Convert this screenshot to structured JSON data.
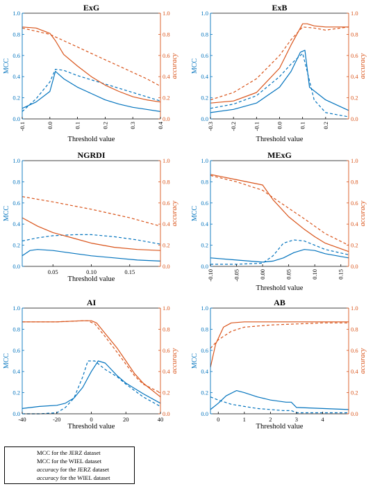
{
  "colors": {
    "mcc": "#0072BD",
    "accuracy": "#D95319"
  },
  "legend": {
    "items": [
      {
        "prefix": "MCC",
        "suffix": " for the JERZ dataset",
        "color": "#0072BD",
        "dashed": false
      },
      {
        "prefix": "MCC",
        "suffix": " for the WIEL dataset",
        "color": "#0072BD",
        "dashed": true
      },
      {
        "prefix": "accuracy",
        "suffix": " for the JERZ dataset",
        "color": "#D95319",
        "dashed": false
      },
      {
        "prefix": "accuracy",
        "suffix": " for the WIEL dataset",
        "color": "#D95319",
        "dashed": true
      }
    ]
  },
  "chart_data": [
    {
      "type": "line",
      "title": "ExG",
      "xlabel": "",
      "ylabel": "MCC",
      "y2label": "accuracy",
      "xlim": [
        -0.1,
        0.4
      ],
      "ylim": [
        0,
        1
      ],
      "xticks": [
        -0.1,
        0.0,
        0.1,
        0.2,
        0.3,
        0.4
      ],
      "xticklabels": [
        "-0.1",
        "0.0",
        "0.1",
        "0.2",
        "0.3",
        "0.4"
      ],
      "yticks": [
        0,
        0.2,
        0.4,
        0.6,
        0.8,
        1.0
      ],
      "yticklabels": [
        "0.0",
        "0.2",
        "0.4",
        "0.6",
        "0.8",
        "1.0"
      ],
      "series": [
        {
          "name": "MCC for the JERZ dataset",
          "color": "#0072BD",
          "dashed": false,
          "x": [
            -0.1,
            -0.05,
            0.0,
            0.02,
            0.05,
            0.1,
            0.15,
            0.2,
            0.25,
            0.3,
            0.35,
            0.4
          ],
          "y": [
            0.1,
            0.16,
            0.26,
            0.45,
            0.38,
            0.3,
            0.24,
            0.18,
            0.14,
            0.11,
            0.09,
            0.07
          ]
        },
        {
          "name": "MCC for the WIEL dataset",
          "color": "#0072BD",
          "dashed": true,
          "x": [
            -0.1,
            -0.05,
            0.0,
            0.02,
            0.05,
            0.1,
            0.15,
            0.2,
            0.25,
            0.3,
            0.35,
            0.4
          ],
          "y": [
            0.07,
            0.19,
            0.35,
            0.47,
            0.46,
            0.41,
            0.37,
            0.33,
            0.29,
            0.25,
            0.21,
            0.17
          ]
        },
        {
          "name": "accuracy for the JERZ dataset",
          "color": "#D95319",
          "dashed": false,
          "x": [
            -0.1,
            -0.05,
            0.0,
            0.02,
            0.05,
            0.1,
            0.15,
            0.2,
            0.25,
            0.3,
            0.35,
            0.4
          ],
          "y": [
            0.87,
            0.86,
            0.81,
            0.74,
            0.61,
            0.5,
            0.4,
            0.32,
            0.26,
            0.21,
            0.18,
            0.16
          ]
        },
        {
          "name": "accuracy for the WIEL dataset",
          "color": "#D95319",
          "dashed": true,
          "x": [
            -0.1,
            0.0,
            0.05,
            0.1,
            0.15,
            0.2,
            0.25,
            0.3,
            0.35,
            0.4
          ],
          "y": [
            0.86,
            0.8,
            0.74,
            0.68,
            0.62,
            0.56,
            0.5,
            0.44,
            0.38,
            0.31
          ]
        }
      ]
    },
    {
      "type": "line",
      "title": "ExB",
      "xlabel": "",
      "ylabel": "MCC",
      "y2label": "accuracy",
      "xlim": [
        -0.3,
        0.3
      ],
      "ylim": [
        0,
        1
      ],
      "xticks": [
        -0.3,
        -0.2,
        -0.1,
        0.0,
        0.1,
        0.2
      ],
      "xticklabels": [
        "-0.3",
        "-0.2",
        "-0.1",
        "0.0",
        "0.1",
        "0.2"
      ],
      "yticks": [
        0,
        0.2,
        0.4,
        0.6,
        0.8,
        1.0
      ],
      "yticklabels": [
        "0.0",
        "0.2",
        "0.4",
        "0.6",
        "0.8",
        "1.0"
      ],
      "series": [
        {
          "name": "MCC for the JERZ dataset",
          "color": "#0072BD",
          "dashed": false,
          "x": [
            -0.3,
            -0.2,
            -0.1,
            0.0,
            0.05,
            0.09,
            0.11,
            0.13,
            0.2,
            0.3
          ],
          "y": [
            0.06,
            0.09,
            0.15,
            0.3,
            0.45,
            0.63,
            0.65,
            0.3,
            0.18,
            0.08
          ]
        },
        {
          "name": "MCC for the WIEL dataset",
          "color": "#0072BD",
          "dashed": true,
          "x": [
            -0.3,
            -0.2,
            -0.1,
            0.0,
            0.05,
            0.1,
            0.12,
            0.15,
            0.2,
            0.3
          ],
          "y": [
            0.1,
            0.14,
            0.22,
            0.4,
            0.52,
            0.62,
            0.45,
            0.18,
            0.06,
            0.02
          ]
        },
        {
          "name": "accuracy for the JERZ dataset",
          "color": "#D95319",
          "dashed": false,
          "x": [
            -0.3,
            -0.2,
            -0.1,
            0.0,
            0.05,
            0.1,
            0.12,
            0.15,
            0.2,
            0.3
          ],
          "y": [
            0.15,
            0.17,
            0.25,
            0.48,
            0.7,
            0.9,
            0.9,
            0.88,
            0.87,
            0.87
          ]
        },
        {
          "name": "accuracy for the WIEL dataset",
          "color": "#D95319",
          "dashed": true,
          "x": [
            -0.3,
            -0.2,
            -0.1,
            0.0,
            0.05,
            0.1,
            0.15,
            0.2,
            0.3
          ],
          "y": [
            0.18,
            0.25,
            0.38,
            0.6,
            0.75,
            0.87,
            0.86,
            0.84,
            0.87
          ]
        }
      ]
    },
    {
      "type": "line",
      "title": "NGRDI",
      "xlabel": "",
      "ylabel": "MCC",
      "y2label": "accuracy",
      "xlim": [
        0.01,
        0.19
      ],
      "ylim": [
        0,
        1
      ],
      "xticks": [
        0.05,
        0.1,
        0.15
      ],
      "xticklabels": [
        "0.05",
        "0.10",
        "0.15"
      ],
      "yticks": [
        0,
        0.2,
        0.4,
        0.6,
        0.8,
        1.0
      ],
      "yticklabels": [
        "0.0",
        "0.2",
        "0.4",
        "0.6",
        "0.8",
        "1.0"
      ],
      "series": [
        {
          "name": "MCC for the JERZ dataset",
          "color": "#0072BD",
          "dashed": false,
          "x": [
            0.01,
            0.02,
            0.03,
            0.05,
            0.08,
            0.1,
            0.13,
            0.16,
            0.19
          ],
          "y": [
            0.1,
            0.15,
            0.16,
            0.15,
            0.12,
            0.1,
            0.08,
            0.06,
            0.05
          ]
        },
        {
          "name": "MCC for the WIEL dataset",
          "color": "#0072BD",
          "dashed": true,
          "x": [
            0.01,
            0.03,
            0.05,
            0.08,
            0.1,
            0.13,
            0.16,
            0.19
          ],
          "y": [
            0.24,
            0.27,
            0.29,
            0.3,
            0.3,
            0.28,
            0.25,
            0.21
          ]
        },
        {
          "name": "accuracy for the JERZ dataset",
          "color": "#D95319",
          "dashed": false,
          "x": [
            0.01,
            0.03,
            0.05,
            0.08,
            0.1,
            0.13,
            0.16,
            0.19
          ],
          "y": [
            0.46,
            0.38,
            0.32,
            0.26,
            0.22,
            0.18,
            0.16,
            0.15
          ]
        },
        {
          "name": "accuracy for the WIEL dataset",
          "color": "#D95319",
          "dashed": true,
          "x": [
            0.01,
            0.05,
            0.1,
            0.15,
            0.19
          ],
          "y": [
            0.66,
            0.61,
            0.54,
            0.46,
            0.38
          ]
        }
      ]
    },
    {
      "type": "line",
      "title": "MExG",
      "xlabel": "",
      "ylabel": "MCC",
      "y2label": "accuracy",
      "xlim": [
        -0.1,
        0.165
      ],
      "ylim": [
        0,
        1
      ],
      "xticks": [
        -0.1,
        -0.05,
        0.0,
        0.05,
        0.1,
        0.15
      ],
      "xticklabels": [
        "-0.10",
        "-0.05",
        "0.00",
        "0.05",
        "0.10",
        "0.15"
      ],
      "yticks": [
        0,
        0.2,
        0.4,
        0.6,
        0.8,
        1.0
      ],
      "yticklabels": [
        "0.0",
        "0.2",
        "0.4",
        "0.6",
        "0.8",
        "1.0"
      ],
      "series": [
        {
          "name": "MCC for the JERZ dataset",
          "color": "#0072BD",
          "dashed": false,
          "x": [
            -0.1,
            -0.05,
            0.0,
            0.02,
            0.04,
            0.06,
            0.08,
            0.1,
            0.12,
            0.165
          ],
          "y": [
            0.08,
            0.06,
            0.04,
            0.05,
            0.08,
            0.13,
            0.16,
            0.15,
            0.12,
            0.08
          ]
        },
        {
          "name": "MCC for the WIEL dataset",
          "color": "#0072BD",
          "dashed": true,
          "x": [
            -0.1,
            -0.05,
            0.0,
            0.02,
            0.04,
            0.06,
            0.08,
            0.1,
            0.12,
            0.165
          ],
          "y": [
            0.02,
            0.02,
            0.03,
            0.1,
            0.22,
            0.25,
            0.24,
            0.2,
            0.16,
            0.11
          ]
        },
        {
          "name": "accuracy for the JERZ dataset",
          "color": "#D95319",
          "dashed": false,
          "x": [
            -0.1,
            -0.05,
            0.0,
            0.02,
            0.05,
            0.08,
            0.1,
            0.12,
            0.165
          ],
          "y": [
            0.87,
            0.82,
            0.77,
            0.63,
            0.47,
            0.35,
            0.28,
            0.22,
            0.14
          ]
        },
        {
          "name": "accuracy for the WIEL dataset",
          "color": "#D95319",
          "dashed": true,
          "x": [
            -0.1,
            -0.05,
            0.0,
            0.02,
            0.05,
            0.08,
            0.1,
            0.12,
            0.165
          ],
          "y": [
            0.86,
            0.8,
            0.72,
            0.65,
            0.55,
            0.45,
            0.38,
            0.31,
            0.2
          ]
        }
      ]
    },
    {
      "type": "line",
      "title": "AI",
      "xlabel": "",
      "ylabel": "MCC",
      "y2label": "accuracy",
      "xlim": [
        -40,
        40
      ],
      "ylim": [
        0,
        1
      ],
      "xticks": [
        -40,
        -20,
        0,
        20,
        40
      ],
      "xticklabels": [
        "-40",
        "-20",
        "0",
        "20",
        "40"
      ],
      "yticks": [
        0,
        0.2,
        0.4,
        0.6,
        0.8,
        1.0
      ],
      "yticklabels": [
        "0.0",
        "0.2",
        "0.4",
        "0.6",
        "0.8",
        "1.0"
      ],
      "series": [
        {
          "name": "MCC for the JERZ dataset",
          "color": "#0072BD",
          "dashed": false,
          "x": [
            -40,
            -30,
            -20,
            -15,
            -10,
            -5,
            0,
            4,
            8,
            15,
            20,
            30,
            40
          ],
          "y": [
            0.05,
            0.07,
            0.08,
            0.1,
            0.15,
            0.25,
            0.4,
            0.5,
            0.48,
            0.36,
            0.29,
            0.19,
            0.1
          ]
        },
        {
          "name": "MCC for the WIEL dataset",
          "color": "#0072BD",
          "dashed": true,
          "x": [
            -40,
            -30,
            -20,
            -15,
            -10,
            -5,
            -2,
            2,
            8,
            15,
            20,
            30,
            40
          ],
          "y": [
            0.0,
            0.0,
            0.01,
            0.06,
            0.15,
            0.35,
            0.5,
            0.5,
            0.42,
            0.35,
            0.28,
            0.16,
            0.07
          ]
        },
        {
          "name": "accuracy for the JERZ dataset",
          "color": "#D95319",
          "dashed": false,
          "x": [
            -40,
            -20,
            -5,
            0,
            3,
            8,
            15,
            20,
            25,
            30,
            40
          ],
          "y": [
            0.87,
            0.87,
            0.88,
            0.88,
            0.86,
            0.76,
            0.62,
            0.5,
            0.38,
            0.29,
            0.16
          ]
        },
        {
          "name": "accuracy for the WIEL dataset",
          "color": "#D95319",
          "dashed": true,
          "x": [
            -40,
            -20,
            -5,
            -2,
            2,
            8,
            15,
            20,
            25,
            30,
            40
          ],
          "y": [
            0.87,
            0.87,
            0.88,
            0.88,
            0.85,
            0.73,
            0.58,
            0.47,
            0.36,
            0.28,
            0.2
          ]
        }
      ]
    },
    {
      "type": "line",
      "title": "AB",
      "xlabel": "",
      "ylabel": "MCC",
      "y2label": "accuracy",
      "xlim": [
        -0.3,
        5
      ],
      "ylim": [
        0,
        1
      ],
      "xticks": [
        0,
        1,
        2,
        3,
        4
      ],
      "xticklabels": [
        "0",
        "1",
        "2",
        "3",
        "4"
      ],
      "yticks": [
        0,
        0.2,
        0.4,
        0.6,
        0.8,
        1.0
      ],
      "yticklabels": [
        "0.0",
        "0.2",
        "0.4",
        "0.6",
        "0.8",
        "1.0"
      ],
      "series": [
        {
          "name": "MCC for the JERZ dataset",
          "color": "#0072BD",
          "dashed": false,
          "x": [
            -0.3,
            0,
            0.3,
            0.7,
            1.0,
            1.5,
            2.0,
            2.6,
            2.8,
            3.0,
            4.0,
            5.0
          ],
          "y": [
            0.04,
            0.1,
            0.17,
            0.22,
            0.2,
            0.16,
            0.13,
            0.11,
            0.11,
            0.06,
            0.05,
            0.04
          ]
        },
        {
          "name": "MCC for the WIEL dataset",
          "color": "#0072BD",
          "dashed": true,
          "x": [
            -0.3,
            0,
            0.5,
            1.0,
            1.5,
            2.0,
            2.5,
            2.8,
            3.0,
            4.0,
            5.0
          ],
          "y": [
            0.16,
            0.13,
            0.09,
            0.07,
            0.05,
            0.04,
            0.03,
            0.03,
            0.01,
            0.01,
            0.01
          ]
        },
        {
          "name": "accuracy for the JERZ dataset",
          "color": "#D95319",
          "dashed": false,
          "x": [
            -0.3,
            -0.1,
            0.2,
            0.5,
            1.0,
            2.0,
            3.0,
            4.0,
            5.0
          ],
          "y": [
            0.44,
            0.66,
            0.82,
            0.86,
            0.87,
            0.87,
            0.87,
            0.87,
            0.87
          ]
        },
        {
          "name": "accuracy for the WIEL dataset",
          "color": "#D95319",
          "dashed": true,
          "x": [
            -0.3,
            0,
            0.5,
            1.0,
            2.0,
            3.0,
            4.0,
            5.0
          ],
          "y": [
            0.62,
            0.7,
            0.78,
            0.82,
            0.84,
            0.85,
            0.86,
            0.86
          ]
        }
      ]
    }
  ],
  "shared_xlabel": "Threshold value"
}
